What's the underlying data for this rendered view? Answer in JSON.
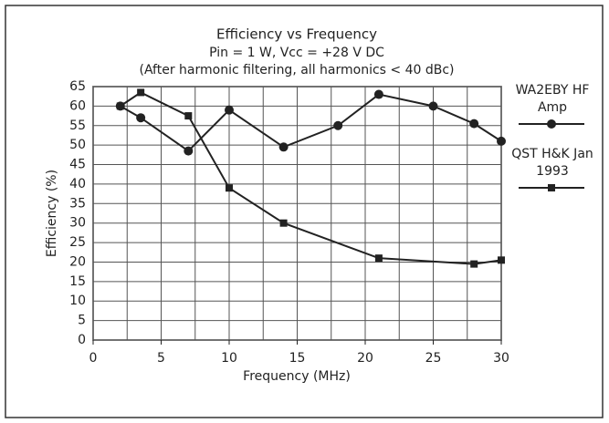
{
  "chart_data": {
    "type": "line",
    "title": "Efficiency vs Frequency",
    "subtitle": "Pin = 1 W, Vcc = +28 V DC",
    "note": "(After harmonic filtering, all harmonics < 40 dBc)",
    "x_label": "Frequency (MHz)",
    "y_label": "Efficiency (%)",
    "xlim": [
      0,
      30
    ],
    "xticks": [
      0,
      5,
      10,
      15,
      20,
      25,
      30
    ],
    "xminor": [
      2.5,
      7.5,
      12.5,
      17.5,
      22.5,
      27.5
    ],
    "ylim": [
      0,
      65
    ],
    "yticks": [
      0,
      5,
      10,
      15,
      20,
      25,
      30,
      35,
      40,
      45,
      50,
      55,
      60,
      65
    ],
    "grid": true,
    "legend": "right",
    "series": [
      {
        "name": "WA2EBY HF Amp",
        "color": "#222222",
        "marker": "circle",
        "x": [
          2,
          3.5,
          7,
          10,
          14,
          18,
          21,
          25,
          28,
          30
        ],
        "values": [
          60,
          57,
          48.5,
          59,
          49.5,
          55,
          63,
          60,
          55.5,
          51
        ]
      },
      {
        "name": "QST H&K Jan 1993",
        "color": "#222222",
        "marker": "square",
        "x": [
          2,
          3.5,
          7,
          10,
          14,
          21,
          28,
          30
        ],
        "values": [
          60,
          63.5,
          57.5,
          39,
          30,
          21,
          19.5,
          20.5
        ]
      }
    ]
  }
}
